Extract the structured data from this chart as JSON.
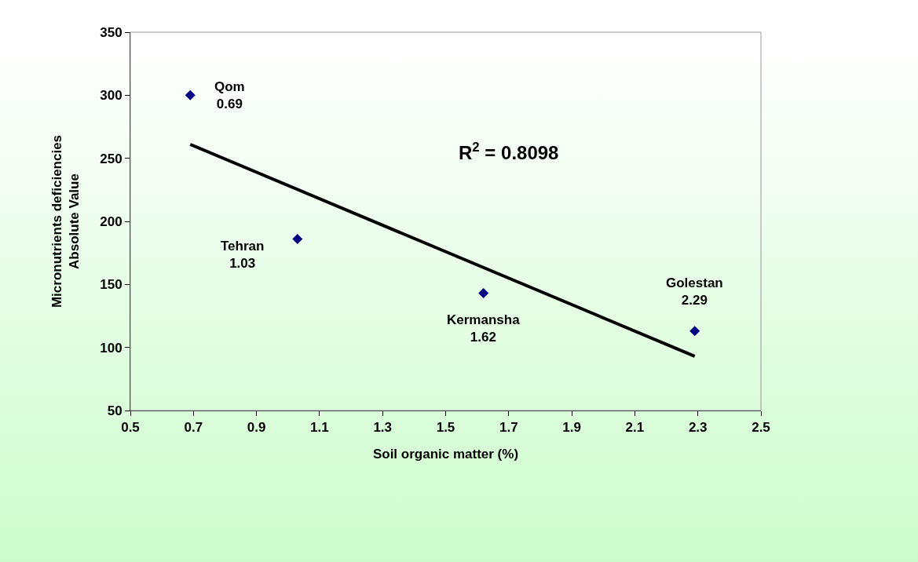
{
  "chart_data": {
    "type": "scatter",
    "xlabel": "Soil organic matter (%)",
    "ylabel": "Micronutrients deficiencies\nAbsolute Value",
    "x": [
      0.69,
      1.03,
      1.62,
      2.29
    ],
    "series": [
      {
        "color": "#000080",
        "marker": "diamond",
        "values": [
          300,
          186,
          143,
          113
        ]
      },
      {
        "type": "line",
        "color": "#000000",
        "x": [
          0.69,
          2.29
        ],
        "values": [
          261,
          93
        ],
        "marker": "none",
        "line_style": "solid"
      }
    ],
    "xlim": [
      0.5,
      2.5
    ],
    "xticks": [
      0.5,
      0.7,
      0.9,
      1.1,
      1.3,
      1.5,
      1.7,
      1.9,
      2.1,
      2.3,
      2.5
    ],
    "ylim": [
      50,
      350
    ],
    "yticks": [
      50,
      100,
      150,
      200,
      250,
      300,
      350
    ],
    "grid": false,
    "annotations": [
      {
        "text": "Qom\n0.69",
        "x": 0.69,
        "y": 300
      },
      {
        "text": "Tehran\n1.03",
        "x": 1.03,
        "y": 186
      },
      {
        "text": "Kermansha\n1.62",
        "x": 1.62,
        "y": 143
      },
      {
        "text": "Golestan\n2.29",
        "x": 2.29,
        "y": 113
      },
      "R$^{2}$ = 0.8098"
    ]
  }
}
